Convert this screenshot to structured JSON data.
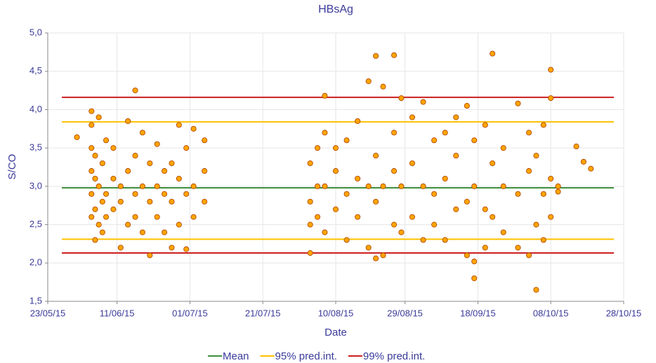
{
  "chart_data": {
    "type": "scatter",
    "title": "HBsAg",
    "x_label": "Date",
    "y_label": "S/CO",
    "x": [
      "2015-05-31",
      "2015-06-04",
      "2015-06-04",
      "2015-06-04",
      "2015-06-04",
      "2015-06-04",
      "2015-06-04",
      "2015-06-05",
      "2015-06-05",
      "2015-06-05",
      "2015-06-05",
      "2015-06-06",
      "2015-06-06",
      "2015-06-06",
      "2015-06-07",
      "2015-06-07",
      "2015-06-07",
      "2015-06-08",
      "2015-06-08",
      "2015-06-08",
      "2015-06-10",
      "2015-06-10",
      "2015-06-10",
      "2015-06-12",
      "2015-06-12",
      "2015-06-12",
      "2015-06-14",
      "2015-06-14",
      "2015-06-14",
      "2015-06-16",
      "2015-06-16",
      "2015-06-16",
      "2015-06-16",
      "2015-06-18",
      "2015-06-18",
      "2015-06-18",
      "2015-06-20",
      "2015-06-20",
      "2015-06-20",
      "2015-06-22",
      "2015-06-22",
      "2015-06-22",
      "2015-06-24",
      "2015-06-24",
      "2015-06-24",
      "2015-06-26",
      "2015-06-26",
      "2015-06-26",
      "2015-06-28",
      "2015-06-28",
      "2015-06-28",
      "2015-06-30",
      "2015-06-30",
      "2015-06-30",
      "2015-07-02",
      "2015-07-02",
      "2015-07-02",
      "2015-07-05",
      "2015-07-05",
      "2015-07-05",
      "2015-08-03",
      "2015-08-03",
      "2015-08-03",
      "2015-08-03",
      "2015-08-05",
      "2015-08-05",
      "2015-08-05",
      "2015-08-07",
      "2015-08-07",
      "2015-08-07",
      "2015-08-07",
      "2015-08-10",
      "2015-08-10",
      "2015-08-10",
      "2015-08-13",
      "2015-08-13",
      "2015-08-13",
      "2015-08-16",
      "2015-08-16",
      "2015-08-16",
      "2015-08-19",
      "2015-08-19",
      "2015-08-19",
      "2015-08-21",
      "2015-08-21",
      "2015-08-21",
      "2015-08-21",
      "2015-08-23",
      "2015-08-23",
      "2015-08-23",
      "2015-08-26",
      "2015-08-26",
      "2015-08-26",
      "2015-08-26",
      "2015-08-28",
      "2015-08-28",
      "2015-08-28",
      "2015-08-31",
      "2015-08-31",
      "2015-08-31",
      "2015-09-03",
      "2015-09-03",
      "2015-09-03",
      "2015-09-06",
      "2015-09-06",
      "2015-09-06",
      "2015-09-09",
      "2015-09-09",
      "2015-09-09",
      "2015-09-12",
      "2015-09-12",
      "2015-09-12",
      "2015-09-15",
      "2015-09-15",
      "2015-09-15",
      "2015-09-17",
      "2015-09-17",
      "2015-09-17",
      "2015-09-17",
      "2015-09-20",
      "2015-09-20",
      "2015-09-20",
      "2015-09-22",
      "2015-09-22",
      "2015-09-22",
      "2015-09-25",
      "2015-09-25",
      "2015-09-25",
      "2015-09-29",
      "2015-09-29",
      "2015-09-29",
      "2015-10-02",
      "2015-10-02",
      "2015-10-02",
      "2015-10-04",
      "2015-10-04",
      "2015-10-04",
      "2015-10-06",
      "2015-10-06",
      "2015-10-06",
      "2015-10-08",
      "2015-10-08",
      "2015-10-08",
      "2015-10-08",
      "2015-10-10",
      "2015-10-10",
      "2015-10-15",
      "2015-10-17",
      "2015-10-19"
    ],
    "values": [
      3.64,
      3.98,
      3.5,
      3.2,
      2.9,
      2.6,
      3.8,
      2.3,
      3.1,
      3.4,
      2.7,
      3.9,
      2.5,
      3.0,
      2.8,
      3.3,
      2.4,
      3.6,
      2.9,
      2.6,
      3.1,
      2.7,
      3.5,
      2.8,
      3.0,
      2.2,
      3.85,
      2.5,
      3.2,
      4.25,
      2.9,
      3.4,
      2.6,
      2.4,
      3.7,
      3.0,
      2.1,
      2.8,
      3.3,
      3.55,
      2.6,
      3.0,
      2.4,
      3.2,
      2.9,
      3.3,
      2.2,
      2.8,
      3.8,
      2.5,
      3.1,
      2.18,
      3.5,
      2.9,
      3.75,
      3.0,
      2.6,
      3.6,
      3.2,
      2.8,
      2.13,
      3.3,
      2.8,
      2.5,
      3.0,
      2.6,
      3.5,
      4.18,
      3.7,
      2.4,
      3.0,
      3.2,
      2.7,
      3.5,
      3.6,
      2.3,
      2.9,
      3.85,
      2.6,
      3.1,
      4.37,
      2.2,
      3.0,
      4.7,
      2.06,
      3.4,
      2.8,
      4.3,
      2.1,
      3.0,
      4.71,
      3.7,
      2.5,
      3.2,
      4.15,
      2.4,
      3.0,
      3.9,
      2.6,
      3.3,
      4.1,
      2.3,
      3.0,
      3.6,
      2.5,
      2.9,
      3.7,
      2.3,
      3.1,
      3.9,
      2.7,
      3.4,
      4.05,
      2.1,
      2.8,
      1.8,
      2.02,
      3.0,
      3.6,
      3.8,
      2.2,
      2.7,
      4.73,
      3.3,
      2.6,
      3.5,
      2.4,
      3.0,
      4.08,
      2.2,
      2.9,
      3.7,
      2.1,
      3.2,
      1.65,
      2.5,
      3.4,
      3.8,
      2.3,
      2.9,
      4.52,
      4.15,
      2.6,
      3.1,
      3.0,
      2.93,
      3.52,
      3.32,
      3.23
    ],
    "color": "#ffa500",
    "reference_lines": [
      {
        "name": "Mean",
        "color": "#3f8f3f",
        "values": [
          2.98
        ]
      },
      {
        "name": "95% pred.int.",
        "color": "#ffc000",
        "values": [
          2.31,
          3.84
        ]
      },
      {
        "name": "99% pred.int.",
        "color": "#cc1f1f",
        "values": [
          2.13,
          4.16
        ]
      }
    ],
    "xlim": [
      "2015-05-23",
      "2015-10-28"
    ],
    "xticks": [
      {
        "value": "2015-05-23",
        "label": "23/05/15"
      },
      {
        "value": "2015-06-11",
        "label": "11/06/15"
      },
      {
        "value": "2015-07-01",
        "label": "01/07/15"
      },
      {
        "value": "2015-07-21",
        "label": "21/07/15"
      },
      {
        "value": "2015-08-10",
        "label": "10/08/15"
      },
      {
        "value": "2015-08-29",
        "label": "29/08/15"
      },
      {
        "value": "2015-09-18",
        "label": "18/09/15"
      },
      {
        "value": "2015-10-08",
        "label": "08/10/15"
      },
      {
        "value": "2015-10-28",
        "label": "28/10/15"
      }
    ],
    "ylim": [
      1.5,
      5.0
    ],
    "yticks": [
      {
        "value": 1.5,
        "label": "1,5"
      },
      {
        "value": 2.0,
        "label": "2,0"
      },
      {
        "value": 2.5,
        "label": "2,5"
      },
      {
        "value": 3.0,
        "label": "3,0"
      },
      {
        "value": 3.5,
        "label": "3,5"
      },
      {
        "value": 4.0,
        "label": "4,0"
      },
      {
        "value": 4.5,
        "label": "4,5"
      },
      {
        "value": 5.0,
        "label": "5,0"
      }
    ],
    "grid": true
  }
}
